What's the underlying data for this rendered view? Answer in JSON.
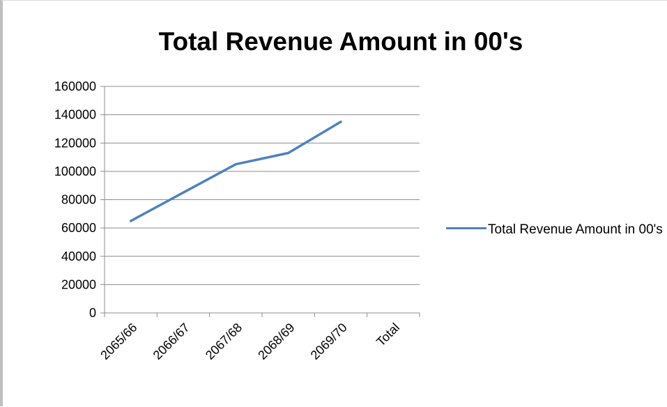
{
  "chart_data": {
    "type": "line",
    "title": "Total Revenue Amount in 00's",
    "xlabel": "",
    "ylabel": "",
    "categories": [
      "2065/66",
      "2066/67",
      "2067/68",
      "2068/69",
      "2069/70",
      "Total"
    ],
    "ylim": [
      0,
      160000
    ],
    "yticks": [
      "0",
      "20000",
      "40000",
      "60000",
      "80000",
      "100000",
      "120000",
      "140000",
      "160000"
    ],
    "series": [
      {
        "name": "Total Revenue Amount in 00's",
        "values": [
          65000,
          85000,
          105000,
          113000,
          135000,
          null
        ],
        "color": "#4f81bd"
      }
    ],
    "grid": true,
    "legend": "right"
  }
}
